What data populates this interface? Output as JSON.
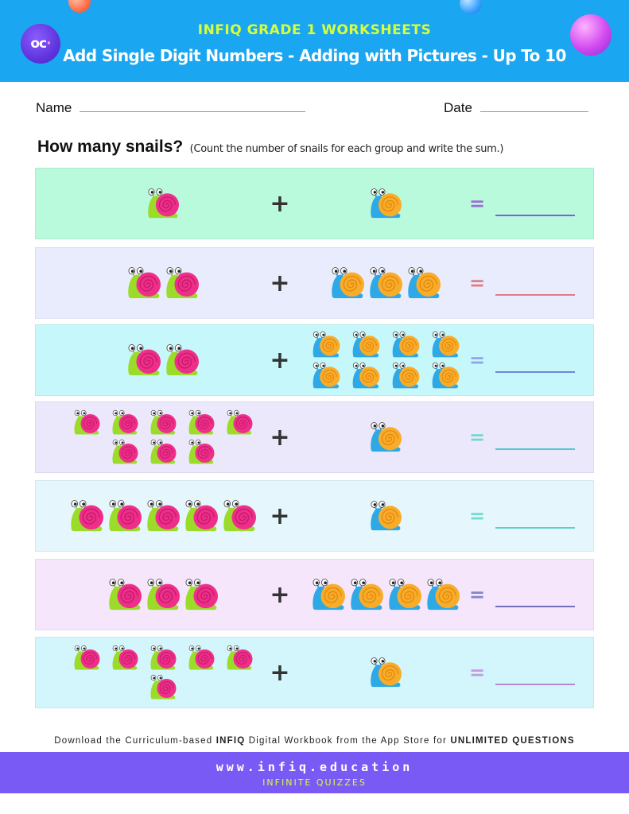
{
  "header": {
    "subtitle": "INFIQ GRADE 1 WORKSHEETS",
    "title": "Add Single Digit Numbers - Adding with Pictures - Up To 10",
    "logo_text": "oc"
  },
  "form": {
    "name_label": "Name",
    "date_label": "Date"
  },
  "question": {
    "main": "How many snails?",
    "instruction": "(Count the number of snails for each group and write the sum.)"
  },
  "symbols": {
    "plus": "+",
    "equals": "="
  },
  "problems": [
    {
      "left": 1,
      "right": 1,
      "bg": "#b9fadc",
      "eq_color": "#9b6fd6",
      "line_color": "#7d5fe0"
    },
    {
      "left": 2,
      "right": 3,
      "bg": "#e9ecfd",
      "eq_color": "#e37b85",
      "line_color": "#e07a88"
    },
    {
      "left": 2,
      "right": 8,
      "bg": "#c6f7fb",
      "eq_color": "#8fa5ea",
      "line_color": "#6f86e0"
    },
    {
      "left": 8,
      "right": 1,
      "bg": "#ece8fc",
      "eq_color": "#72d8cf",
      "line_color": "#59c6cf"
    },
    {
      "left": 5,
      "right": 1,
      "bg": "#e6f6fd",
      "eq_color": "#72dccd",
      "line_color": "#5fcfc5"
    },
    {
      "left": 3,
      "right": 4,
      "bg": "#f5e6fc",
      "eq_color": "#8585c8",
      "line_color": "#7070b8"
    },
    {
      "left": 6,
      "right": 1,
      "bg": "#d3f6fc",
      "eq_color": "#c49be0",
      "line_color": "#b28ad6"
    }
  ],
  "footer": {
    "note_prefix": "Download the Curriculum-based ",
    "note_brand": "INFIQ",
    "note_middle": " Digital Workbook from the App Store for ",
    "note_emphasis": "UNLIMITED QUESTIONS",
    "url": "www.infiq.education",
    "tagline": "INFINITE QUIZZES"
  }
}
